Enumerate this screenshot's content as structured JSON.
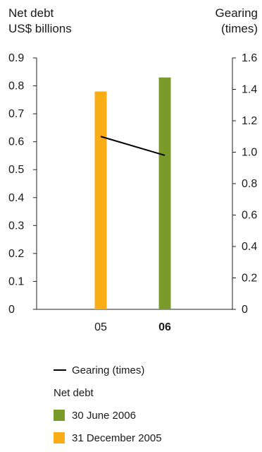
{
  "chart_data": {
    "type": "bar",
    "categories": [
      "05",
      "06"
    ],
    "category_bold": [
      false,
      true
    ],
    "left_axis": {
      "label_line1": "Net debt",
      "label_line2": "US$ billions",
      "ylim": [
        0,
        0.9
      ],
      "ticks": [
        "0",
        "0.1",
        "0.2",
        "0.3",
        "0.4",
        "0.5",
        "0.6",
        "0.7",
        "0.8",
        "0.9"
      ]
    },
    "right_axis": {
      "label_line1": "Gearing",
      "label_line2": "(times)",
      "ylim": [
        0,
        1.6
      ],
      "ticks": [
        "0",
        "0.2",
        "0.4",
        "0.6",
        "0.8",
        "1.0",
        "1.2",
        "1.4",
        "1.6"
      ]
    },
    "bars": [
      {
        "category": "05",
        "value": 0.78,
        "color": "#FBAD18"
      },
      {
        "category": "06",
        "value": 0.83,
        "color": "#7A9A2A"
      }
    ],
    "line": {
      "name": "Gearing (times)",
      "values": [
        1.1,
        0.98
      ],
      "color": "#000000"
    },
    "grid": false
  },
  "legend": {
    "line_label": "Gearing (times)",
    "group_label": "Net debt",
    "items": [
      {
        "label": "30 June 2006",
        "color": "#7A9A2A"
      },
      {
        "label": "31 December 2005",
        "color": "#FBAD18"
      }
    ]
  }
}
